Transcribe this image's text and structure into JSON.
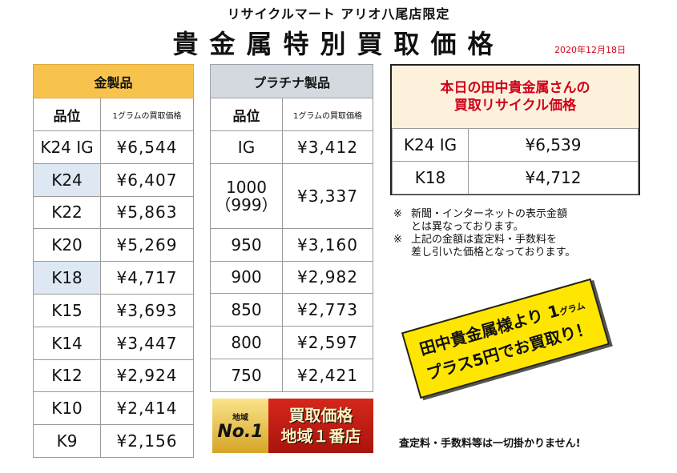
{
  "header": {
    "store": "リサイクルマート アリオ八尾店限定",
    "title": "貴金属特別買取価格",
    "date": "2020年12月18日"
  },
  "gold": {
    "caption": "金製品",
    "col_grade": "品位",
    "col_price": "1グラムの買取価格",
    "rows": [
      {
        "grade": "K24 IG",
        "price": "¥6,544"
      },
      {
        "grade": "K24",
        "price": "¥6,407"
      },
      {
        "grade": "K22",
        "price": "¥5,863"
      },
      {
        "grade": "K20",
        "price": "¥5,269"
      },
      {
        "grade": "K18",
        "price": "¥4,717"
      },
      {
        "grade": "K15",
        "price": "¥3,693"
      },
      {
        "grade": "K14",
        "price": "¥3,447"
      },
      {
        "grade": "K12",
        "price": "¥2,924"
      },
      {
        "grade": "K10",
        "price": "¥2,414"
      },
      {
        "grade": "K9",
        "price": "¥2,156"
      }
    ],
    "highlight_color": "#dde8f3"
  },
  "platinum": {
    "caption": "プラチナ製品",
    "col_grade": "品位",
    "col_price": "1グラムの買取価格",
    "rows": [
      {
        "grade": "IG",
        "price": "¥3,412"
      },
      {
        "grade_line1": "1000",
        "grade_line2": "（999）",
        "price": "¥3,337"
      },
      {
        "grade": "950",
        "price": "¥3,160"
      },
      {
        "grade": "900",
        "price": "¥2,982"
      },
      {
        "grade": "850",
        "price": "¥2,773"
      },
      {
        "grade": "800",
        "price": "¥2,597"
      },
      {
        "grade": "750",
        "price": "¥2,421"
      }
    ]
  },
  "today": {
    "caption_line1": "本日の田中貴金属さんの",
    "caption_line2": "買取リサイクル価格",
    "rows": [
      {
        "grade": "K24 IG",
        "price": "¥6,539"
      },
      {
        "grade": "K18",
        "price": "¥4,712"
      }
    ],
    "caption_color": "#d0021b"
  },
  "notes": [
    {
      "mark": "※",
      "line1": "新聞・インターネットの表示金額",
      "line2": "とは異なっております。"
    },
    {
      "mark": "※",
      "line1": "上記の金額は査定料・手数料を",
      "line2": "差し引いた価格となっております。"
    }
  ],
  "stamp": {
    "line1": "田中貴金属様より 1",
    "unit": "グラム",
    "line2": "プラス5円でお買取り！"
  },
  "badge": {
    "region": "地域",
    "no1": "No.1",
    "line1": "買取価格",
    "line2": "地域１番店"
  },
  "footer": "査定料・手数料等は一切掛かりません!"
}
